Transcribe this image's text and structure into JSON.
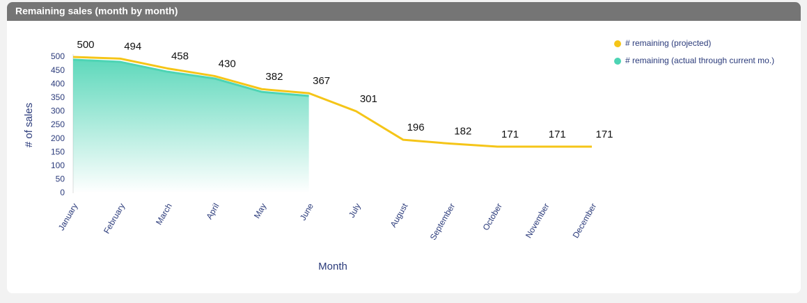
{
  "chart_data": {
    "type": "line",
    "title": "Remaining sales (month by month)",
    "x_label": "Month",
    "y_label": "# of sales",
    "categories": [
      "January",
      "February",
      "March",
      "April",
      "May",
      "June",
      "July",
      "August",
      "September",
      "October",
      "November",
      "December"
    ],
    "series": [
      {
        "name": "# remaining (projected)",
        "color": "#f5c518",
        "values": [
          500,
          494,
          458,
          430,
          382,
          367,
          301,
          196,
          182,
          171,
          171,
          171
        ],
        "data_labels": true
      },
      {
        "name": "# remaining (actual through current mo.)",
        "color": "#4dd4b4",
        "values": [
          490,
          482,
          446,
          421,
          372,
          357,
          null,
          null,
          null,
          null,
          null,
          null
        ],
        "area": true
      }
    ],
    "ylim": [
      0,
      500
    ],
    "yticks": [
      0,
      50,
      100,
      150,
      200,
      250,
      300,
      350,
      400,
      450,
      500
    ],
    "legend": "top-right",
    "grid": false
  }
}
